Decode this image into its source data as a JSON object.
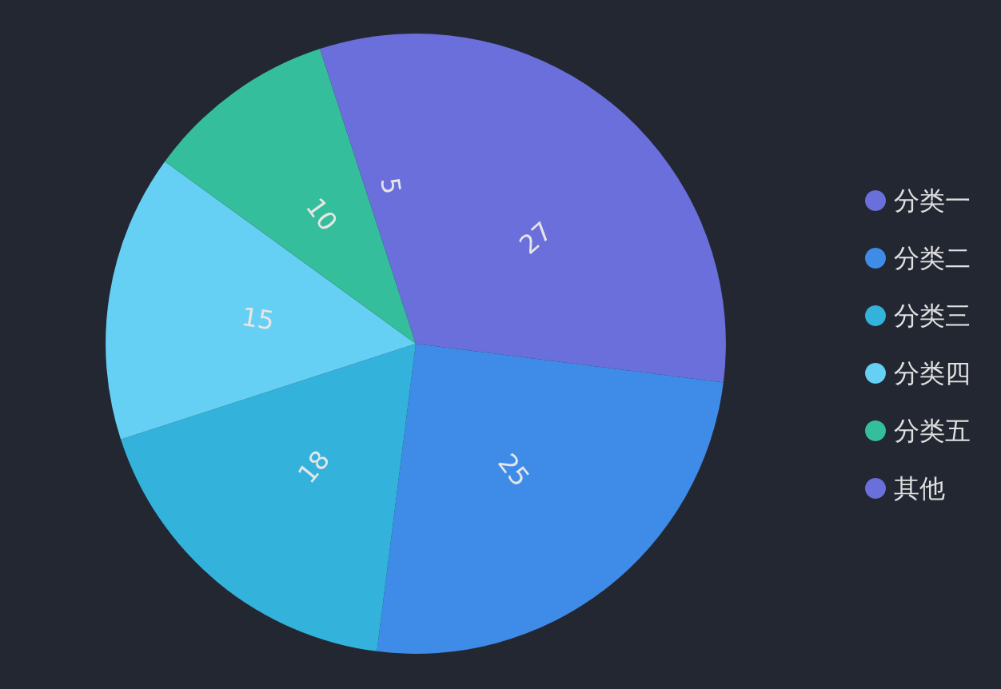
{
  "chart_data": {
    "type": "pie",
    "categories": [
      "分类一",
      "分类二",
      "分类三",
      "分类四",
      "分类五",
      "其他"
    ],
    "values": [
      27,
      25,
      18,
      15,
      10,
      5
    ],
    "colors": [
      "#6a6fdc",
      "#3f8ce8",
      "#33b2dc",
      "#66cff4",
      "#35be9b",
      "#6a6fdc"
    ],
    "data_labels": true,
    "legend": "right"
  }
}
